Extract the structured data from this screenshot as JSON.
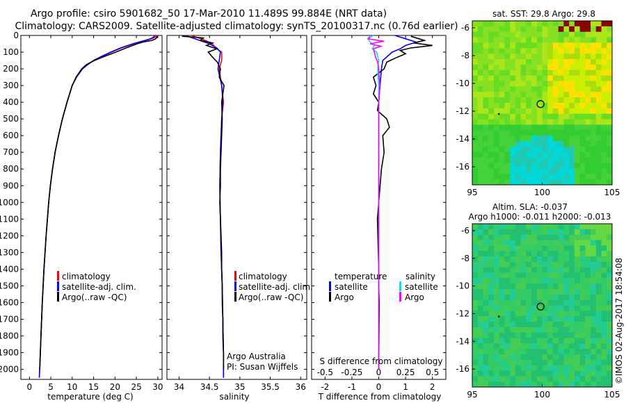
{
  "header": {
    "line1": "Argo profile: csiro 5901682_50 17-Mar-2010 11.489S 99.884E (NRT data)",
    "line2": "Climatology: CARS2009. Satellite-adjusted climatology: synTS_20100317.nc (0.76d earlier)"
  },
  "colors": {
    "climatology": "#ff0000",
    "satellite": "#0000ff",
    "argo": "#000000",
    "salinity_satellite": "#00e5ee",
    "salinity_argo": "#ff00ff"
  },
  "chart_data": [
    {
      "id": "temperature",
      "type": "line",
      "xlabel": "temperature (deg C)",
      "ylabel": "",
      "xlim": [
        -2,
        31
      ],
      "ylim": [
        2060,
        0
      ],
      "xticks": [
        "0",
        "5",
        "10",
        "15",
        "20",
        "25",
        "30"
      ],
      "xtick_values": [
        0,
        5,
        10,
        15,
        20,
        25,
        30
      ],
      "yticks": [
        "0",
        "100",
        "200",
        "300",
        "400",
        "500",
        "600",
        "700",
        "800",
        "900",
        "1000",
        "1100",
        "1200",
        "1300",
        "1400",
        "1500",
        "1600",
        "1700",
        "1800",
        "1900",
        "2000"
      ],
      "ytick_values": [
        0,
        100,
        200,
        300,
        400,
        500,
        600,
        700,
        800,
        900,
        1000,
        1100,
        1200,
        1300,
        1400,
        1500,
        1600,
        1700,
        1800,
        1900,
        2000
      ],
      "legend": [
        "climatology",
        "satellite-adj. clim.",
        "Argo(..raw -QC)"
      ],
      "series": [
        {
          "name": "climatology",
          "color": "#ff0000",
          "depth": [
            0,
            10,
            20,
            30,
            40,
            50,
            75,
            100,
            125,
            150,
            175,
            200,
            250,
            300,
            400,
            500,
            600,
            700,
            800,
            900,
            1000,
            1200,
            1400,
            1600,
            1800,
            2000,
            2050
          ],
          "values": [
            29.8,
            29.4,
            28.5,
            27.2,
            25.8,
            24.5,
            21.5,
            19.2,
            17.0,
            15.0,
            13.5,
            12.3,
            10.9,
            10.0,
            8.8,
            7.7,
            6.8,
            6.0,
            5.4,
            4.9,
            4.5,
            3.9,
            3.4,
            3.0,
            2.7,
            2.4,
            2.3
          ]
        },
        {
          "name": "satellite-adj. clim.",
          "color": "#0000ff",
          "depth": [
            0,
            10,
            20,
            30,
            40,
            50,
            75,
            100,
            125,
            150,
            175,
            200,
            250,
            300,
            400,
            500,
            600,
            700,
            800,
            900,
            1000,
            1200,
            1400,
            1600,
            1800,
            2000,
            2050
          ],
          "values": [
            29.3,
            29.0,
            28.3,
            27.0,
            25.5,
            24.2,
            21.3,
            19.0,
            16.9,
            15.0,
            13.6,
            12.4,
            11.0,
            10.0,
            8.8,
            7.7,
            6.8,
            6.0,
            5.4,
            4.9,
            4.5,
            3.9,
            3.4,
            3.0,
            2.7,
            2.4,
            2.3
          ]
        },
        {
          "name": "Argo(..raw -QC)",
          "color": "#000000",
          "depth": [
            5,
            10,
            20,
            30,
            40,
            50,
            75,
            100,
            125,
            150,
            175,
            200,
            250,
            300,
            400,
            500,
            600,
            700,
            800,
            900,
            1000,
            1200,
            1400,
            1600,
            1800,
            2000
          ],
          "values": [
            29.9,
            29.8,
            29.5,
            28.6,
            26.5,
            25.2,
            22.6,
            20.2,
            17.6,
            15.2,
            13.3,
            12.2,
            10.9,
            10.0,
            8.8,
            7.7,
            6.8,
            6.0,
            5.4,
            4.9,
            4.5,
            3.9,
            3.4,
            3.0,
            2.7,
            2.4
          ]
        }
      ]
    },
    {
      "id": "salinity",
      "type": "line",
      "xlabel": "salinity",
      "xlim": [
        33.8,
        36.1
      ],
      "ylim": [
        2060,
        0
      ],
      "xticks": [
        "34",
        "34.5",
        "35",
        "35.5",
        "36"
      ],
      "xtick_values": [
        34,
        34.5,
        35,
        35.5,
        36
      ],
      "legend": [
        "climatology",
        "satellite-adj. clim.",
        "Argo(..raw -QC)"
      ],
      "annotation": [
        "Argo Australia",
        "PI: Susan Wijffels"
      ],
      "series": [
        {
          "name": "climatology",
          "color": "#ff0000",
          "depth": [
            0,
            25,
            50,
            75,
            100,
            150,
            200,
            300,
            400,
            500,
            700,
            900,
            1100,
            1300,
            1500,
            1700,
            1900,
            2050
          ],
          "values": [
            34.2,
            34.4,
            34.55,
            34.6,
            34.7,
            34.7,
            34.66,
            34.7,
            34.73,
            34.7,
            34.68,
            34.67,
            34.68,
            34.69,
            34.71,
            34.72,
            34.73,
            34.73
          ]
        },
        {
          "name": "satellite-adj. clim.",
          "color": "#0000ff",
          "depth": [
            0,
            25,
            50,
            75,
            100,
            150,
            200,
            300,
            400,
            500,
            700,
            900,
            1100,
            1300,
            1500,
            1700,
            1900,
            2050
          ],
          "values": [
            34.1,
            34.3,
            34.5,
            34.62,
            34.68,
            34.66,
            34.64,
            34.7,
            34.72,
            34.7,
            34.68,
            34.67,
            34.68,
            34.69,
            34.71,
            34.72,
            34.73,
            34.73
          ]
        },
        {
          "name": "Argo(..raw -QC)",
          "color": "#000000",
          "depth": [
            5,
            15,
            30,
            45,
            60,
            80,
            100,
            130,
            160,
            200,
            250,
            300,
            350,
            400,
            500,
            600,
            700,
            800,
            900,
            1000,
            1100,
            1200,
            1300,
            1400,
            1500,
            1600,
            1700,
            1800,
            1900,
            2000
          ],
          "values": [
            34.05,
            34.4,
            34.35,
            34.55,
            34.45,
            34.62,
            34.48,
            34.55,
            34.63,
            34.68,
            34.66,
            34.74,
            34.72,
            34.7,
            34.71,
            34.7,
            34.69,
            34.68,
            34.68,
            34.67,
            34.68,
            34.69,
            34.7,
            34.7,
            34.71,
            34.71,
            34.72,
            34.72,
            34.73,
            34.73
          ]
        }
      ]
    },
    {
      "id": "differences",
      "type": "line",
      "xlabel": "T difference from climatology",
      "xlabel_top": "S difference from climatology",
      "xlim": [
        -2.5,
        2.5
      ],
      "ylim": [
        2060,
        0
      ],
      "xticks": [
        "-2",
        "-1",
        "0",
        "1",
        "2"
      ],
      "xtick_values": [
        -2,
        -1,
        0,
        1,
        2
      ],
      "s_ticks": [
        "-0.5",
        "-0.25",
        "0",
        "0.25",
        "0.5"
      ],
      "s_tick_values": [
        -0.5,
        -0.25,
        0,
        0.25,
        0.5
      ],
      "s_scale": 4,
      "legend_headers": [
        "temperature",
        "salinity"
      ],
      "legend": [
        "satellite",
        "Argo",
        "satellite",
        "Argo"
      ],
      "series": [
        {
          "name": "temperature satellite",
          "color": "#0000ff",
          "depth": [
            0,
            20,
            40,
            60,
            80,
            100,
            150,
            200,
            300,
            400,
            500,
            600,
            800,
            1000,
            1500,
            2000
          ],
          "values": [
            0.6,
            1.0,
            1.4,
            1.0,
            0.8,
            0.5,
            0.15,
            0.1,
            0.05,
            0.0,
            0.0,
            0.0,
            0.0,
            0.0,
            0.0,
            0.0
          ]
        },
        {
          "name": "temperature Argo",
          "color": "#000000",
          "depth": [
            5,
            20,
            30,
            45,
            60,
            75,
            90,
            110,
            130,
            160,
            200,
            250,
            300,
            350,
            400,
            450,
            500,
            550,
            600,
            700,
            800,
            1000,
            1100,
            1400,
            1500,
            1600,
            2000
          ],
          "values": [
            1.2,
            1.5,
            1.7,
            1.3,
            2.0,
            1.2,
            0.8,
            1.0,
            0.7,
            0.3,
            0.2,
            -0.2,
            -0.1,
            -0.2,
            0.0,
            -0.05,
            0.3,
            0.4,
            0.15,
            0.2,
            0.1,
            0.0,
            -0.05,
            0.0,
            0.0,
            0.02,
            0.0
          ]
        },
        {
          "name": "salinity satellite",
          "color": "#00e5ee",
          "depth": [
            0,
            20,
            40,
            60,
            80,
            100,
            150,
            200,
            300,
            400,
            500,
            800,
            1200,
            1600,
            2000
          ],
          "values": [
            -0.05,
            -0.1,
            -0.08,
            -0.04,
            -0.06,
            -0.02,
            0.0,
            -0.01,
            0.0,
            0.0,
            0.0,
            0.0,
            0.0,
            0.0,
            0.0
          ]
        },
        {
          "name": "salinity Argo",
          "color": "#ff00ff",
          "depth": [
            5,
            20,
            35,
            50,
            65,
            80,
            100,
            130,
            160,
            200,
            300,
            400,
            500,
            700,
            1000,
            1200,
            1500,
            1800,
            2000
          ],
          "values": [
            -0.08,
            -0.1,
            0.05,
            -0.08,
            0.02,
            -0.05,
            -0.04,
            -0.03,
            -0.01,
            0.0,
            0.01,
            0.0,
            0.0,
            0.0,
            0.0,
            0.0,
            0.0,
            0.0,
            0.0
          ]
        }
      ]
    },
    {
      "id": "sst_map",
      "type": "heatmap",
      "title": "sat. SST: 29.8  Argo: 29.8",
      "xlim": [
        95,
        105
      ],
      "ylim": [
        -17.3,
        -5.5
      ],
      "xticks": [
        "95",
        "100",
        "105"
      ],
      "xtick_values": [
        95,
        100,
        105
      ],
      "yticks": [
        "-6",
        "-8",
        "-10",
        "-12",
        "-14",
        "-16"
      ],
      "ytick_values": [
        -6,
        -8,
        -10,
        -12,
        -14,
        -16
      ],
      "marker": {
        "lon": 99.884,
        "lat": -11.489
      }
    },
    {
      "id": "sla_map",
      "type": "heatmap",
      "title_line1": "Altim. SLA: -0.037",
      "title_line2": "Argo h1000: -0.011  h2000: -0.013",
      "xlim": [
        95,
        105
      ],
      "ylim": [
        -17.3,
        -5.5
      ],
      "xticks": [
        "95",
        "100",
        "105"
      ],
      "xtick_values": [
        95,
        100,
        105
      ],
      "yticks": [
        "-6",
        "-8",
        "-10",
        "-12",
        "-14",
        "-16"
      ],
      "ytick_values": [
        -6,
        -8,
        -10,
        -12,
        -14,
        -16
      ],
      "marker": {
        "lon": 99.884,
        "lat": -11.489
      }
    }
  ],
  "credit": "©IMOS 02-Aug-2017 18:54:08"
}
